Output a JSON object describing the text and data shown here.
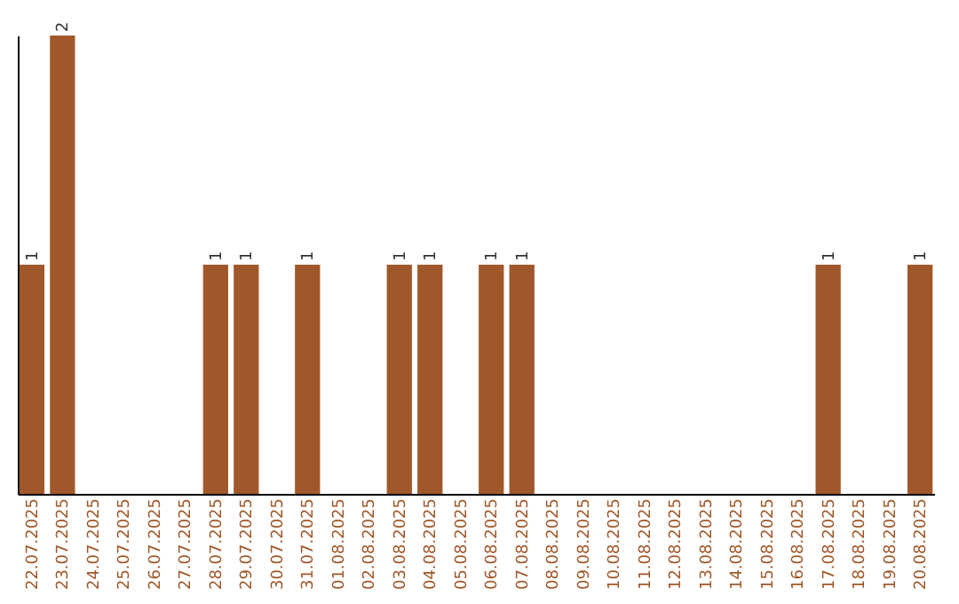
{
  "chart_data": {
    "type": "bar",
    "categories": [
      "22.07.2025",
      "23.07.2025",
      "24.07.2025",
      "25.07.2025",
      "26.07.2025",
      "27.07.2025",
      "28.07.2025",
      "29.07.2025",
      "30.07.2025",
      "31.07.2025",
      "01.08.2025",
      "02.08.2025",
      "03.08.2025",
      "04.08.2025",
      "05.08.2025",
      "06.08.2025",
      "07.08.2025",
      "08.08.2025",
      "09.08.2025",
      "10.08.2025",
      "11.08.2025",
      "12.08.2025",
      "13.08.2025",
      "14.08.2025",
      "15.08.2025",
      "16.08.2025",
      "17.08.2025",
      "18.08.2025",
      "19.08.2025",
      "20.08.2025"
    ],
    "values": [
      1,
      2,
      0,
      0,
      0,
      0,
      1,
      1,
      0,
      1,
      0,
      0,
      1,
      1,
      0,
      1,
      1,
      0,
      0,
      0,
      0,
      0,
      0,
      0,
      0,
      0,
      1,
      0,
      0,
      1
    ],
    "value_labels": [
      "1",
      "2",
      null,
      null,
      null,
      null,
      "1",
      "1",
      null,
      "1",
      null,
      null,
      "1",
      "1",
      null,
      "1",
      "1",
      null,
      null,
      null,
      null,
      null,
      null,
      null,
      null,
      null,
      "1",
      null,
      null,
      "1"
    ],
    "color": "#a0582a",
    "tick_labels": "x"
  }
}
